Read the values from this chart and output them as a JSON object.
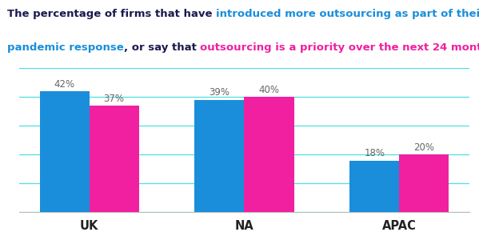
{
  "categories": [
    "UK",
    "NA",
    "APAC"
  ],
  "blue_values": [
    42,
    39,
    18
  ],
  "pink_values": [
    37,
    40,
    20
  ],
  "blue_color": "#1a8edb",
  "pink_color": "#f020a0",
  "bar_width": 0.32,
  "ylim": [
    0,
    50
  ],
  "yticks": [
    0,
    10,
    20,
    30,
    40,
    50
  ],
  "grid_color": "#00d4d4",
  "grid_alpha": 0.7,
  "grid_linewidth": 0.9,
  "background_color": "#ffffff",
  "label_color": "#666666",
  "label_fontsize": 8.5,
  "xlabel_fontsize": 10.5,
  "title_fontsize": 9.5,
  "title_fontweight": "bold",
  "title_black_color": "#1a1a4e",
  "title_blue_color": "#1a8edb",
  "title_pink_color": "#f020a0"
}
